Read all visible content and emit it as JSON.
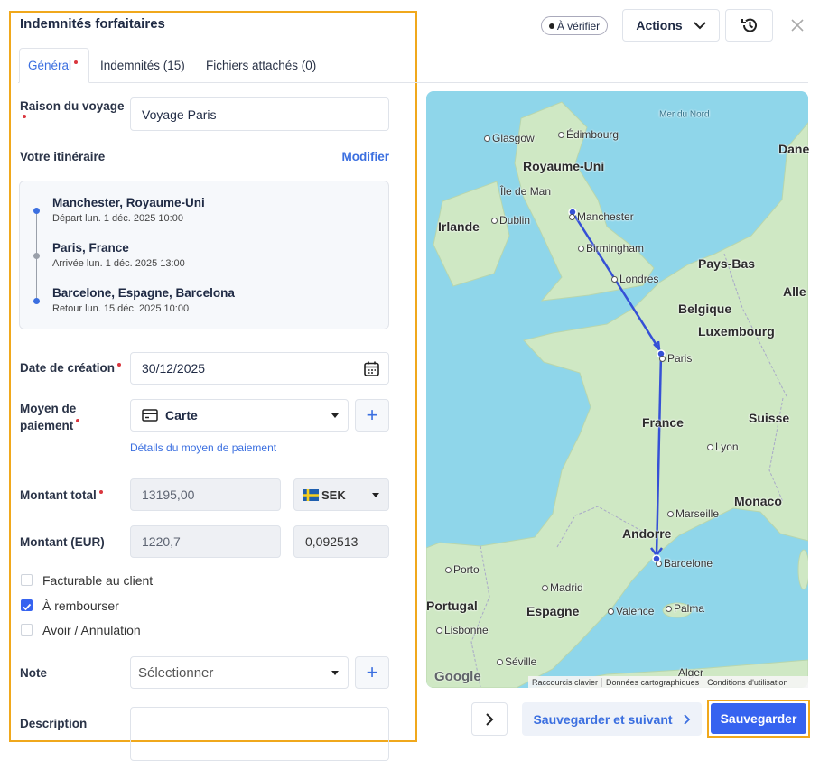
{
  "header": {
    "title": "Indemnités forfaitaires",
    "status_badge": "À vérifier",
    "actions_button": "Actions"
  },
  "tabs": [
    {
      "label": "Général",
      "active": true,
      "required": true
    },
    {
      "label": "Indemnités (15)",
      "active": false,
      "required": false
    },
    {
      "label": "Fichiers attachés (0)",
      "active": false,
      "required": false
    }
  ],
  "form": {
    "trip_reason": {
      "label": "Raison du voyage",
      "required": true,
      "value": "Voyage Paris"
    },
    "itinerary": {
      "label": "Votre itinéraire",
      "edit_link": "Modifier",
      "stops": [
        {
          "place": "Manchester, Royaume-Uni",
          "detail": "Départ lun. 1 déc. 2025 10:00"
        },
        {
          "place": "Paris, France",
          "detail": "Arrivée lun. 1 déc. 2025 13:00"
        },
        {
          "place": "Barcelone, Espagne, Barcelona",
          "detail": "Retour lun. 15 déc. 2025 10:00"
        }
      ]
    },
    "creation_date": {
      "label": "Date de création",
      "required": true,
      "value": "30/12/2025"
    },
    "payment": {
      "label": "Moyen de paiement",
      "required": true,
      "value": "Carte",
      "details_link": "Détails du moyen de paiement"
    },
    "total_amount": {
      "label": "Montant total",
      "required": true,
      "value": "13195,00",
      "currency": "SEK"
    },
    "amount_eur": {
      "label": "Montant (EUR)",
      "required": false,
      "value": "1220,7",
      "rate": "0,092513"
    },
    "checkboxes": [
      {
        "label": "Facturable au client",
        "checked": false
      },
      {
        "label": "À rembourser",
        "checked": true
      },
      {
        "label": "Avoir / Annulation",
        "checked": false
      }
    ],
    "note": {
      "label": "Note",
      "placeholder": "Sélectionner"
    },
    "description": {
      "label": "Description"
    }
  },
  "map": {
    "labels": [
      "Mer du Nord",
      "Glasgow",
      "Édimbourg",
      "Royaume-Uni",
      "Île de Man",
      "Irlande",
      "Dublin",
      "Manchester",
      "Birmingham",
      "Londres",
      "Pays-Bas",
      "Belgique",
      "Luxembourg",
      "Paris",
      "France",
      "Suisse",
      "Lyon",
      "Monaco",
      "Marseille",
      "Andorre",
      "Barcelone",
      "Porto",
      "Madrid",
      "Portugal",
      "Espagne",
      "Valence",
      "Palma",
      "Lisbonne",
      "Séville",
      "Alger",
      "Dane",
      "Alle"
    ],
    "logo": "Google",
    "footer": [
      "Raccourcis clavier",
      "Données cartographiques",
      "Conditions d'utilisation"
    ]
  },
  "footer_buttons": {
    "save_next": "Sauvegarder et suivant",
    "save": "Sauvegarder"
  }
}
